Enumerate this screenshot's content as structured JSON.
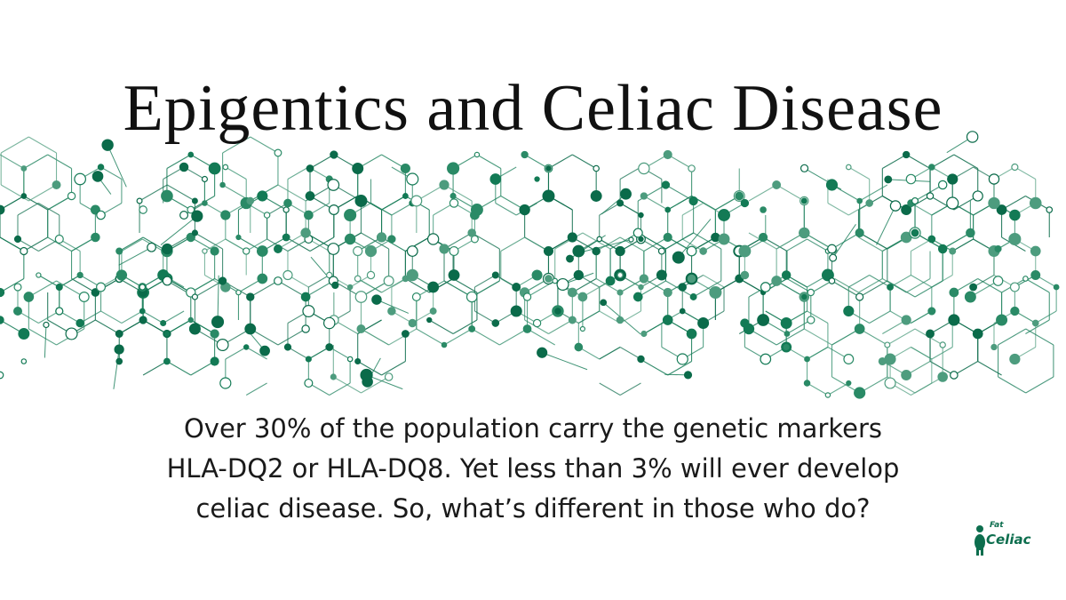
{
  "title": "Epigentics and Celiac Disease",
  "body": [
    "Over 30% of the population carry the genetic markers",
    "HLA-DQ2 or HLA-DQ8. Yet less than 3% will ever develop",
    "celiac disease. So, what’s different in those who do?"
  ],
  "logo": [
    "Fat",
    "Celiac"
  ]
}
